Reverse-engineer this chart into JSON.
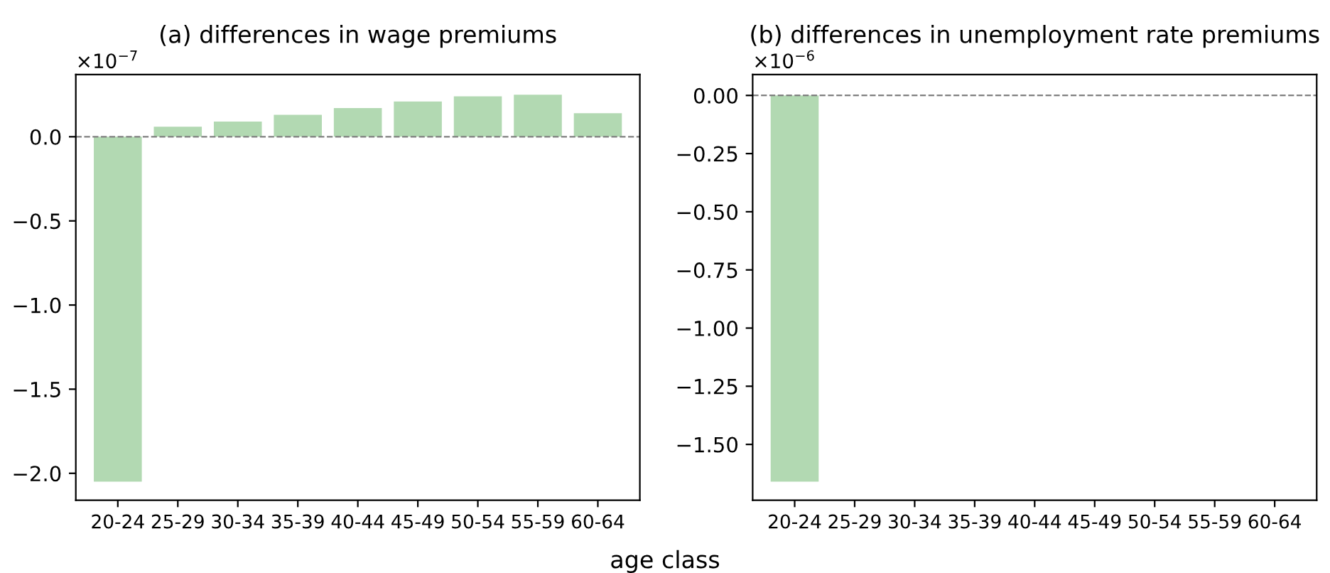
{
  "chart_data": [
    {
      "type": "bar",
      "title": "(a) differences in wage premiums",
      "xlabel": "age class",
      "categories": [
        "20-24",
        "25-29",
        "30-34",
        "35-39",
        "40-44",
        "45-49",
        "50-54",
        "55-59",
        "60-64"
      ],
      "values": [
        -2.05,
        0.06,
        0.09,
        0.13,
        0.17,
        0.21,
        0.24,
        0.25,
        0.14
      ],
      "color": "#b2d9b2",
      "ylim": [
        -2.16,
        0.37
      ],
      "yticks": [
        {
          "value": -2.0,
          "label": "−2.0"
        },
        {
          "value": -1.5,
          "label": "−1.5"
        },
        {
          "value": -1.0,
          "label": "−1.0"
        },
        {
          "value": -0.5,
          "label": "−0.5"
        },
        {
          "value": 0,
          "label": "0.0"
        }
      ],
      "annotations": [
        "×10$^{−7}$"
      ],
      "ref_lines": [
        {
          "axis": "y",
          "value": 0,
          "color": "#808080",
          "line_style": "dashed"
        }
      ],
      "grid": false,
      "legend": false
    },
    {
      "type": "bar",
      "title": "(b) differences in unemployment rate premiums",
      "categories": [
        "20-24",
        "25-29",
        "30-34",
        "35-39",
        "40-44",
        "45-49",
        "50-54",
        "55-59",
        "60-64"
      ],
      "values": [
        -1.66,
        0,
        0,
        0,
        0,
        0,
        0,
        0,
        0
      ],
      "color": "#b2d9b2",
      "ylim": [
        -1.74,
        0.09
      ],
      "yticks": [
        {
          "value": -1.5,
          "label": "−1.50"
        },
        {
          "value": -1.25,
          "label": "−1.25"
        },
        {
          "value": -1.0,
          "label": "−1.00"
        },
        {
          "value": -0.75,
          "label": "−0.75"
        },
        {
          "value": -0.5,
          "label": "−0.50"
        },
        {
          "value": -0.25,
          "label": "−0.25"
        },
        {
          "value": 0,
          "label": "0.00"
        }
      ],
      "annotations": [
        "×10$^{−6}$"
      ],
      "ref_lines": [
        {
          "axis": "y",
          "value": 0,
          "color": "#808080",
          "line_style": "dashed"
        }
      ],
      "grid": false,
      "legend": false
    }
  ]
}
